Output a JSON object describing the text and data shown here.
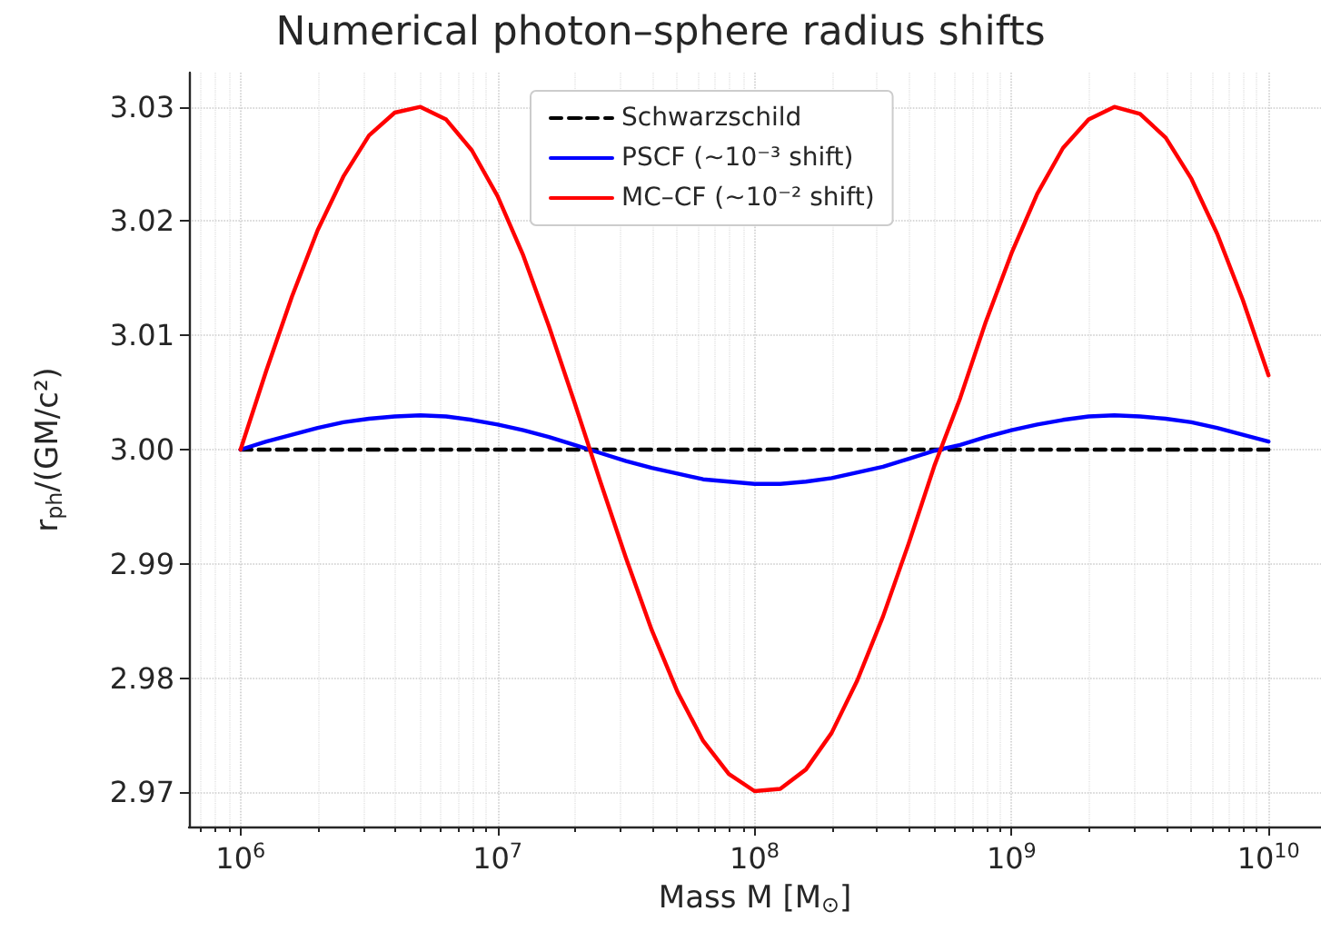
{
  "chart_data": {
    "type": "line",
    "title": "Numerical photon–sphere radius shifts",
    "xlabel": "Mass M [M$_{⊙}$]",
    "ylabel": "r$_{ph}$/(GM/c²)",
    "log": "x",
    "grid": true,
    "legend": "top",
    "marker": "none",
    "xlim": [
      630000,
      16000000000
    ],
    "ylim": [
      2.967,
      3.033
    ],
    "xticks": [
      {
        "value": 1000000,
        "label": "10$^{6}$"
      },
      {
        "value": 10000000,
        "label": "10$^{7}$"
      },
      {
        "value": 100000000,
        "label": "10$^{8}$"
      },
      {
        "value": 1000000000,
        "label": "10$^{9}$"
      },
      {
        "value": 10000000000,
        "label": "10$^{10}$"
      }
    ],
    "yticks": [
      2.97,
      2.98,
      2.99,
      {
        "value": 3,
        "label": "3.00"
      },
      3.01,
      3.02,
      3.03
    ],
    "series": [
      {
        "name": "Schwarzschild",
        "color": "#000000",
        "line_style": "dashed",
        "x": [
          1000000.0,
          10000000000.0
        ],
        "values": [
          3,
          3
        ]
      },
      {
        "name": "PSCF (~10⁻³ shift)",
        "color": "#0000ff",
        "line_style": "solid",
        "x": [
          1000000.0,
          1259000.0,
          1585000.0,
          1995000.0,
          2512000.0,
          3162000.0,
          3981000.0,
          5012000.0,
          6310000.0,
          7943000.0,
          10000000.0,
          12590000.0,
          15850000.0,
          19950000.0,
          25120000.0,
          31620000.0,
          39810000.0,
          50120000.0,
          63100000.0,
          79430000.0,
          100000000.0,
          125900000.0,
          158500000.0,
          199500000.0,
          251200000.0,
          316200000.0,
          398100000.0,
          501200000.0,
          631000000.0,
          794300000.0,
          1000000000.0,
          1259000000.0,
          1585000000.0,
          1995000000.0,
          2512000000.0,
          3162000000.0,
          3981000000.0,
          5012000000.0,
          6310000000.0,
          7943000000.0,
          10000000000.0
        ],
        "values": [
          3,
          3.0007,
          3.0013,
          3.0019,
          3.0024,
          3.0027,
          3.0029,
          3.003,
          3.0029,
          3.0026,
          3.0022,
          3.0017,
          3.0011,
          3.0004,
          2.9997,
          2.999,
          2.9984,
          2.9979,
          2.9974,
          2.9972,
          2.997,
          2.997,
          2.9972,
          2.9975,
          2.998,
          2.9985,
          2.9992,
          2.9999,
          3.0004,
          3.0011,
          3.0017,
          3.0022,
          3.0026,
          3.0029,
          3.003,
          3.0029,
          3.0027,
          3.0024,
          3.0019,
          3.0013,
          3.0007
        ]
      },
      {
        "name": "MC–CF (~10⁻² shift)",
        "color": "#ff0000",
        "line_style": "solid",
        "x": [
          1000000.0,
          1259000.0,
          1585000.0,
          1995000.0,
          2512000.0,
          3162000.0,
          3981000.0,
          5012000.0,
          6310000.0,
          7943000.0,
          10000000.0,
          12590000.0,
          15850000.0,
          19950000.0,
          25120000.0,
          31620000.0,
          39810000.0,
          50120000.0,
          63100000.0,
          79430000.0,
          100000000.0,
          125900000.0,
          158500000.0,
          199500000.0,
          251200000.0,
          316200000.0,
          398100000.0,
          501200000.0,
          631000000.0,
          794300000.0,
          1000000000.0,
          1259000000.0,
          1585000000.0,
          1995000000.0,
          2512000000.0,
          3162000000.0,
          3981000000.0,
          5012000000.0,
          6310000000.0,
          7943000000.0,
          10000000000.0
        ],
        "values": [
          3,
          3.0069,
          3.0134,
          3.0192,
          3.0239,
          3.0275,
          3.0295,
          3.03,
          3.0289,
          3.0262,
          3.0222,
          3.017,
          3.0108,
          3.0041,
          2.9972,
          2.9905,
          2.9842,
          2.9788,
          2.9745,
          2.9716,
          2.9701,
          2.9703,
          2.972,
          2.9752,
          2.9798,
          2.9854,
          2.9918,
          2.9986,
          3.0045,
          3.0112,
          3.0172,
          3.0224,
          3.0264,
          3.0289,
          3.03,
          3.0294,
          3.0273,
          3.0237,
          3.0189,
          3.0131,
          3.0065
        ]
      }
    ]
  }
}
